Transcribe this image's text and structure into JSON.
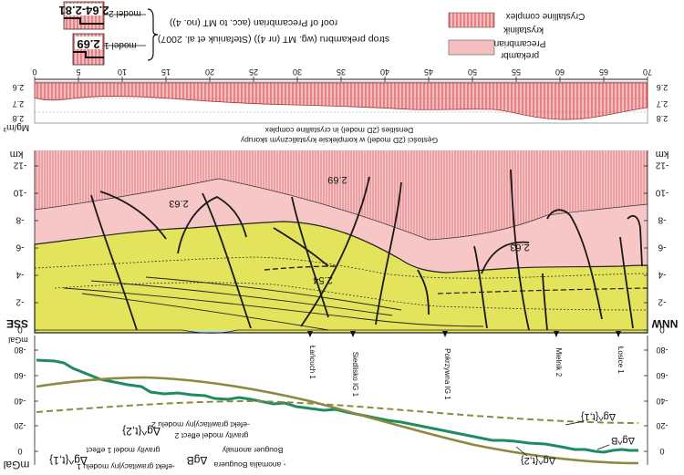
{
  "legend": {
    "model2_value": "2.64-2.81",
    "model2_label": "model 2",
    "model1_value": "2.69",
    "model1_label": "model 1",
    "roof_line1": "roof of Precambrian (acc. to MT (no. 4))",
    "roof_line2": "strop prekambru (wg. MT (nr 4)) (Stefaniuk et al. 2007)",
    "crystalline_en": "Crystalline complex",
    "crystalline_pl": "krystalinik",
    "precambrian_en": "Precambrian",
    "precambrian_pl": "prekambr"
  },
  "distance_axis": {
    "ticks": [
      "0",
      "5",
      "10",
      "15",
      "20",
      "25",
      "30",
      "35",
      "40",
      "45",
      "50",
      "55",
      "60",
      "65",
      "70"
    ]
  },
  "density_panel": {
    "unit": "Mg/m³",
    "ticks": [
      "2.6",
      "2.7",
      "2.8"
    ],
    "caption_en": "Densities (2D model) in crystalline complex",
    "caption_pl": "Gęstości (2D model) w kompleksie krystalicznym skorupy"
  },
  "section_panel": {
    "unit": "km",
    "depth_ticks": [
      "-12",
      "-10",
      "-8",
      "-6",
      "-4",
      "-2",
      "0"
    ],
    "left_label": "SSE",
    "right_label": "NNW",
    "density_labels": [
      "2.69",
      "2.63",
      "2.54",
      "2.63"
    ],
    "wells": [
      "Łańcuch 1",
      "Siedlisko IG 1",
      "Pokrzywna IG 1",
      "Mielnik 2",
      "Łosice 1"
    ]
  },
  "gravity_panel": {
    "unit": "mGal",
    "ticks": [
      "0",
      "-20",
      "-40",
      "-60",
      "-80"
    ],
    "legend_model2_symbol": "Δg^{t,2}",
    "legend_model2_pl": "-efekt grawitacyjny modelu 2",
    "legend_model2_en": "gravity model effect 2",
    "legend_model1_symbol": "Δg^{t,1}",
    "legend_model1_pl": "-efekt grawitacyjny modelu 1",
    "legend_model1_en": "gravity model 1 effect",
    "legend_bouguer_symbol": "ΔgB",
    "legend_bouguer_pl": "- anomalia Bouguera",
    "legend_bouguer_en": "Bouguer anomaly",
    "curve_label_t1": "Δg^{t,1}",
    "curve_label_t2": "Δg^{t,2}",
    "curve_label_b": "Δg^B"
  },
  "colors": {
    "precambrian": "#f4b6b6",
    "crystalline_hatch": "#d4444a",
    "sediment": "#e2e25a",
    "bouguer_curve": "#1c8a5e",
    "model_curve": "#8a8a3a"
  }
}
